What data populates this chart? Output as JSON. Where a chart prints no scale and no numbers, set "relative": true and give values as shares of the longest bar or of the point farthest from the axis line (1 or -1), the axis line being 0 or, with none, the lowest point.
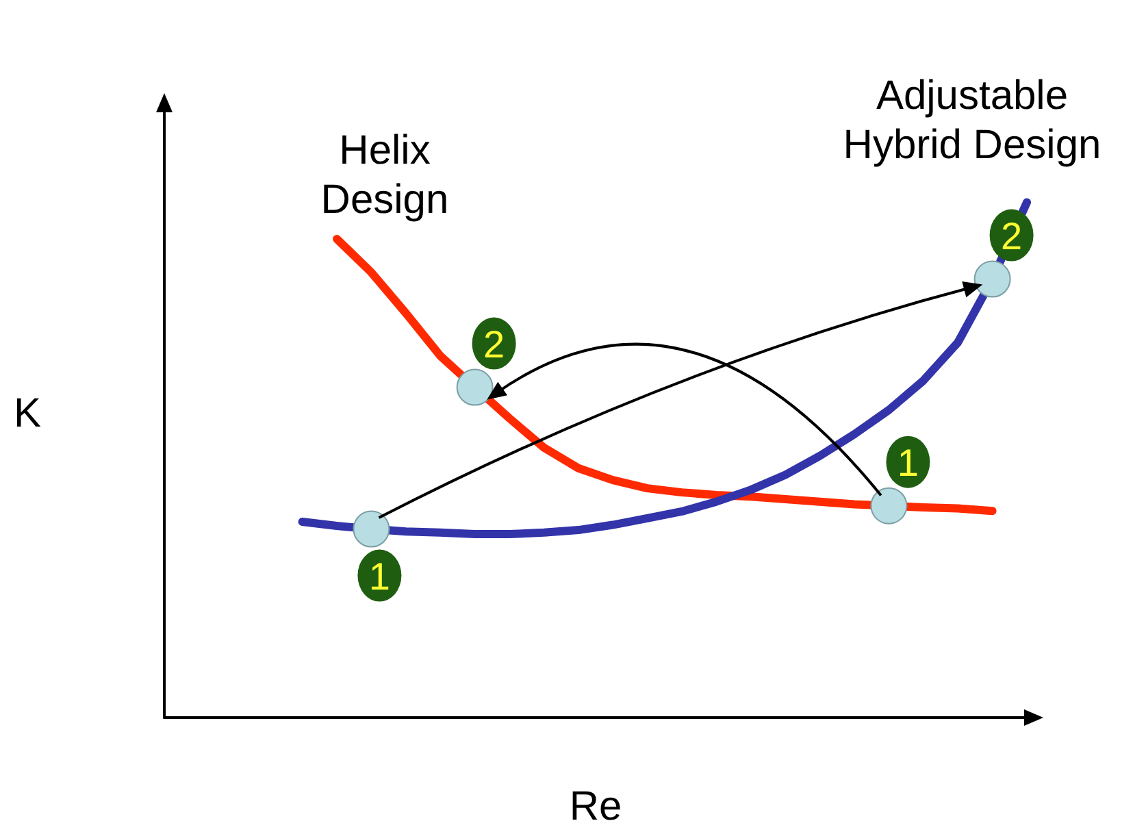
{
  "chart_data": {
    "type": "line",
    "relative": true,
    "xlabel": "Re",
    "ylabel": "K",
    "grid": false,
    "legend": false,
    "marker": "none",
    "line_style": "solid",
    "annotations": [
      {
        "text": "2",
        "y": 0.641
      },
      {
        "text": "1",
        "y": 0.411
      },
      {
        "text": "1",
        "y": 0.366
      },
      {
        "text": "2",
        "y": 0.851
      }
    ],
    "categories": [
      null,
      null,
      null,
      null,
      null,
      null,
      null,
      null,
      null,
      null,
      null,
      null,
      null,
      null,
      null,
      null,
      null,
      null,
      null,
      null,
      null,
      null,
      null,
      null,
      null,
      null
    ],
    "series": [
      {
        "name": "Helix Design",
        "color": "#ff2a00",
        "values": [
          null,
          null,
          null,
          null,
          null,
          0.929,
          0.864,
          0.785,
          0.702,
          0.641,
          0.581,
          0.524,
          0.484,
          0.461,
          0.445,
          0.437,
          0.432,
          0.429,
          0.424,
          0.419,
          0.414,
          0.411,
          0.408,
          0.406,
          0.401,
          null
        ]
      },
      {
        "name": "Adjustable Hybrid Design",
        "color": "#3333aa",
        "values": [
          null,
          null,
          null,
          null,
          0.38,
          0.372,
          0.366,
          0.361,
          0.359,
          0.356,
          0.356,
          0.359,
          0.364,
          0.374,
          0.387,
          0.4,
          0.419,
          0.442,
          0.471,
          0.508,
          0.55,
          0.597,
          0.654,
          0.728,
          0.851,
          1
        ]
      }
    ]
  }
}
